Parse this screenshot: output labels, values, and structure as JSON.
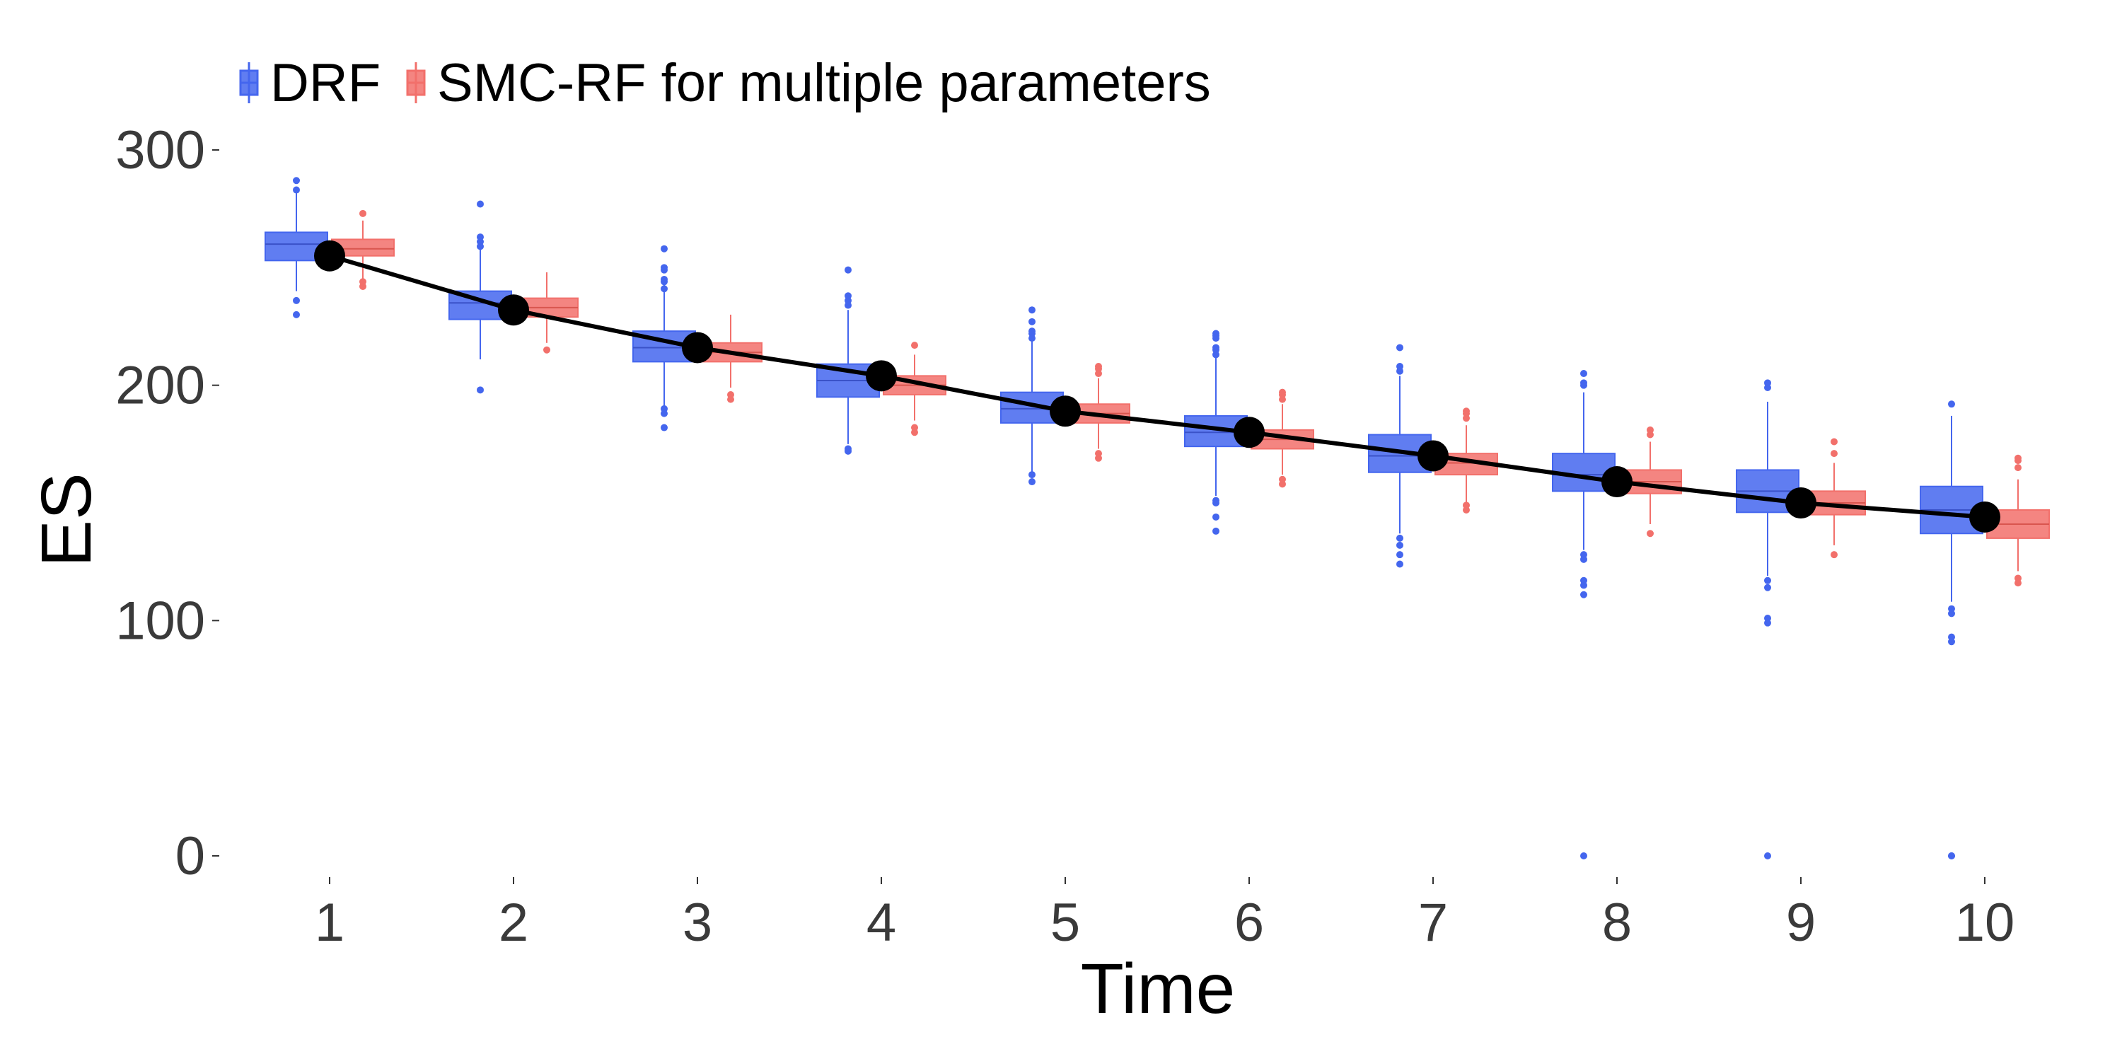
{
  "chart_data": {
    "type": "box",
    "xlabel": "Time",
    "ylabel": "ES",
    "ylim": [
      0,
      300
    ],
    "yticks": [
      0,
      100,
      200,
      300
    ],
    "categories": [
      "1",
      "2",
      "3",
      "4",
      "5",
      "6",
      "7",
      "8",
      "9",
      "10"
    ],
    "legend": {
      "placement": "top-left",
      "entries": [
        "DRF",
        "SMC-RF for multiple parameters"
      ]
    },
    "colors": {
      "drf": "#4466ee",
      "smc": "#f2706b",
      "line": "#000000"
    },
    "series": [
      {
        "name": "DRF",
        "boxes": [
          {
            "q1": 253,
            "median": 260,
            "q3": 265,
            "low": 240,
            "high": 282,
            "outliers": [
              230,
              236,
              283,
              287
            ]
          },
          {
            "q1": 228,
            "median": 235,
            "q3": 240,
            "low": 211,
            "high": 258,
            "outliers": [
              198,
              259,
              261,
              263,
              277
            ]
          },
          {
            "q1": 210,
            "median": 216,
            "q3": 223,
            "low": 191,
            "high": 243,
            "outliers": [
              182,
              188,
              190,
              241,
              244,
              245,
              249,
              250,
              258
            ]
          },
          {
            "q1": 195,
            "median": 202,
            "q3": 209,
            "low": 175,
            "high": 232,
            "outliers": [
              172,
              173,
              234,
              236,
              238,
              249
            ]
          },
          {
            "q1": 184,
            "median": 190,
            "q3": 197,
            "low": 163,
            "high": 219,
            "outliers": [
              159,
              162,
              220,
              222,
              223,
              227,
              232
            ]
          },
          {
            "q1": 174,
            "median": 180,
            "q3": 187,
            "low": 153,
            "high": 212,
            "outliers": [
              138,
              144,
              150,
              151,
              213,
              215,
              216,
              220,
              221,
              222
            ]
          },
          {
            "q1": 163,
            "median": 170,
            "q3": 179,
            "low": 137,
            "high": 204,
            "outliers": [
              124,
              128,
              132,
              135,
              206,
              208,
              216
            ]
          },
          {
            "q1": 155,
            "median": 162,
            "q3": 171,
            "low": 130,
            "high": 197,
            "outliers": [
              0,
              111,
              115,
              117,
              126,
              128,
              200,
              201,
              205
            ]
          },
          {
            "q1": 146,
            "median": 155,
            "q3": 164,
            "low": 119,
            "high": 193,
            "outliers": [
              0,
              99,
              101,
              114,
              117,
              199,
              201
            ]
          },
          {
            "q1": 137,
            "median": 147,
            "q3": 157,
            "low": 108,
            "high": 187,
            "outliers": [
              0,
              0,
              91,
              93,
              103,
              105,
              192
            ]
          }
        ]
      },
      {
        "name": "SMC-RF for multiple parameters",
        "boxes": [
          {
            "q1": 255,
            "median": 258,
            "q3": 262,
            "low": 245,
            "high": 270,
            "outliers": [
              242,
              244,
              273
            ]
          },
          {
            "q1": 229,
            "median": 233,
            "q3": 237,
            "low": 218,
            "high": 248,
            "outliers": [
              215
            ]
          },
          {
            "q1": 210,
            "median": 214,
            "q3": 218,
            "low": 199,
            "high": 230,
            "outliers": [
              194,
              196
            ]
          },
          {
            "q1": 196,
            "median": 200,
            "q3": 204,
            "low": 185,
            "high": 213,
            "outliers": [
              180,
              182,
              217
            ]
          },
          {
            "q1": 184,
            "median": 188,
            "q3": 192,
            "low": 173,
            "high": 203,
            "outliers": [
              169,
              171,
              205,
              207,
              208
            ]
          },
          {
            "q1": 173,
            "median": 177,
            "q3": 181,
            "low": 162,
            "high": 192,
            "outliers": [
              158,
              160,
              194,
              196,
              197
            ]
          },
          {
            "q1": 162,
            "median": 167,
            "q3": 171,
            "low": 150,
            "high": 183,
            "outliers": [
              147,
              149,
              186,
              188,
              189
            ]
          },
          {
            "q1": 154,
            "median": 159,
            "q3": 164,
            "low": 141,
            "high": 176,
            "outliers": [
              137,
              179,
              181
            ]
          },
          {
            "q1": 145,
            "median": 150,
            "q3": 155,
            "low": 132,
            "high": 167,
            "outliers": [
              128,
              171,
              176
            ]
          },
          {
            "q1": 135,
            "median": 141,
            "q3": 147,
            "low": 121,
            "high": 160,
            "outliers": [
              116,
              118,
              165,
              168,
              169
            ]
          }
        ]
      }
    ],
    "mean_line": {
      "values": [
        255,
        232,
        216,
        204,
        189,
        180,
        170,
        159,
        150,
        144
      ]
    }
  }
}
